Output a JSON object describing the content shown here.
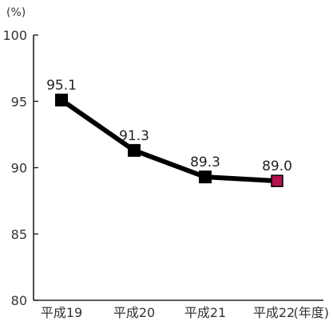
{
  "chart_data": {
    "type": "line",
    "y_unit": "(%)",
    "x_unit": "(年度)",
    "categories": [
      "平成19",
      "平成20",
      "平成21",
      "平成22"
    ],
    "series": [
      {
        "values": [
          95.1,
          91.3,
          89.3,
          89.0
        ],
        "color": "#000000",
        "marker": "square",
        "highlight_last_color": "#b3124e"
      }
    ],
    "data_labels": [
      "95.1",
      "91.3",
      "89.3",
      "89.0"
    ],
    "ylim": [
      80,
      100
    ],
    "yticks": [
      80,
      85,
      90,
      95,
      100
    ],
    "ytick_labels": [
      "80",
      "85",
      "90",
      "95",
      "100"
    ],
    "grid": false
  }
}
